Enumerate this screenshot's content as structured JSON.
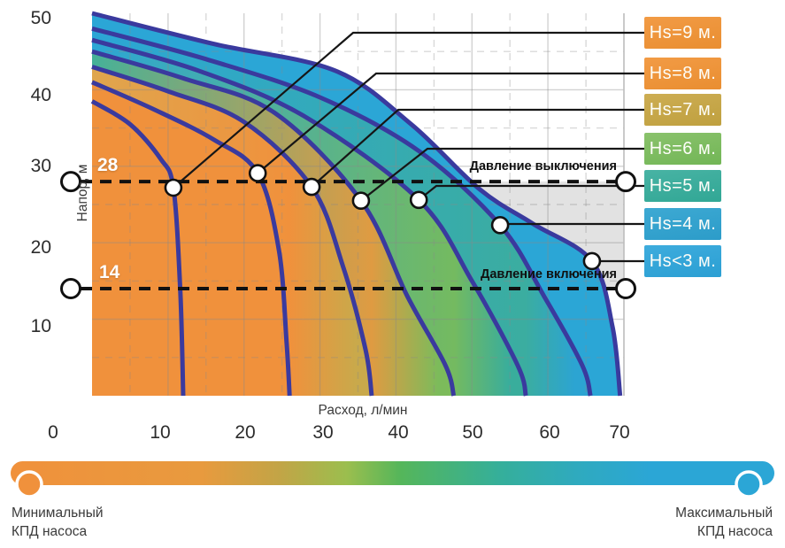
{
  "chart_data": {
    "type": "line",
    "title": "",
    "x_axis": {
      "label": "Расход, л/мин",
      "ticks": [
        "0",
        "10",
        "20",
        "30",
        "40",
        "50",
        "60",
        "70"
      ],
      "range": [
        0,
        70
      ],
      "grid": true
    },
    "y_axis": {
      "label": "Напор, м",
      "ticks": [
        "50",
        "40",
        "30",
        "20",
        "10"
      ],
      "range": [
        0,
        50
      ],
      "grid": true
    },
    "legend_position": "right",
    "pressure_lines": [
      {
        "value": "28",
        "h": 28,
        "label": "Давление выключения"
      },
      {
        "value": "14",
        "h": 14,
        "label": "Давление включения"
      }
    ],
    "series": [
      {
        "label": "Hs=9 м.",
        "color": "#EE9338",
        "color_top": "#F29B45",
        "color_base": "#E98E31",
        "marker": {
          "q": 10.7,
          "h": 27.2
        },
        "points": [
          [
            0,
            38.5
          ],
          [
            5,
            35.5
          ],
          [
            9,
            31
          ],
          [
            10.7,
            27.2
          ],
          [
            11.6,
            14
          ],
          [
            12.0,
            0
          ]
        ]
      },
      {
        "label": "Hs=8 м.",
        "color": "#EE9338",
        "color_top": "#F29B45",
        "color_base": "#E98E31",
        "marker": {
          "q": 21.8,
          "h": 29.1
        },
        "points": [
          [
            0,
            41
          ],
          [
            8,
            37.5
          ],
          [
            16,
            33.5
          ],
          [
            21.8,
            29.1
          ],
          [
            24.6,
            19
          ],
          [
            25.6,
            7
          ],
          [
            26.0,
            0
          ]
        ]
      },
      {
        "label": "Hs=7 м.",
        "color": "#C5A646",
        "color_top": "#CDAD53",
        "color_base": "#BFA03F",
        "marker": {
          "q": 28.9,
          "h": 27.3
        },
        "points": [
          [
            0,
            43
          ],
          [
            10,
            39.8
          ],
          [
            20,
            35.8
          ],
          [
            28.9,
            27.3
          ],
          [
            33,
            17
          ],
          [
            36,
            6
          ],
          [
            36.8,
            0
          ]
        ]
      },
      {
        "label": "Hs=6 м.",
        "color": "#7CBB5B",
        "color_top": "#8AC26C",
        "color_base": "#72B656",
        "marker": {
          "q": 35.4,
          "h": 25.5
        },
        "points": [
          [
            0,
            45
          ],
          [
            12,
            41.5
          ],
          [
            24,
            37
          ],
          [
            35.4,
            25.5
          ],
          [
            41.5,
            13
          ],
          [
            46.5,
            4
          ],
          [
            47.6,
            0
          ]
        ]
      },
      {
        "label": "Hs=5 м.",
        "color": "#3AAC9C",
        "color_top": "#48B3A4",
        "color_base": "#31A795",
        "marker": {
          "q": 43.0,
          "h": 25.6
        },
        "points": [
          [
            0,
            46.5
          ],
          [
            14,
            42.5
          ],
          [
            28,
            36.5
          ],
          [
            43,
            25.6
          ],
          [
            50,
            15
          ],
          [
            56,
            4
          ],
          [
            57.1,
            0
          ]
        ]
      },
      {
        "label": "Hs=4 м.",
        "color": "#2FA2CE",
        "color_top": "#3DA9D3",
        "color_base": "#2C9CC9",
        "marker": {
          "q": 53.7,
          "h": 22.3
        },
        "points": [
          [
            0,
            48
          ],
          [
            15,
            44
          ],
          [
            30,
            39
          ],
          [
            43,
            32
          ],
          [
            53.7,
            22.3
          ],
          [
            59.5,
            13
          ],
          [
            64.5,
            4
          ],
          [
            65.6,
            0
          ]
        ]
      },
      {
        "label": "Hs<3 м.",
        "color": "#2EA6D8",
        "color_top": "#3EACDD",
        "color_base": "#2B9FD3",
        "marker": {
          "q": 65.8,
          "h": 17.6
        },
        "points": [
          [
            0,
            50
          ],
          [
            16,
            46
          ],
          [
            32,
            42.5
          ],
          [
            42,
            35.5
          ],
          [
            51,
            27
          ],
          [
            58,
            22.5
          ],
          [
            65.8,
            17.6
          ],
          [
            68.5,
            9
          ],
          [
            69.5,
            0
          ]
        ]
      }
    ],
    "colors": {
      "curve_stroke": "#3A3A9E",
      "shaded_band": "#E2E2E2",
      "grid": "#8A8A8A",
      "orange": "#F0913C",
      "olive": "#C9A94B",
      "green": "#7CBB5B",
      "teal": "#39AD9C",
      "blue": "#2BA6D6"
    }
  },
  "efficiency_bar": {
    "left_label_lines": [
      "Минимальный",
      "КПД насоса"
    ],
    "right_label_lines": [
      "Максимальный",
      "КПД насоса"
    ],
    "left_color": "#F0913C",
    "right_color": "#2BA6D6",
    "gradient": [
      "#F0913C",
      "#E89A3E",
      "#C3A446",
      "#9BBE4E",
      "#55B65A",
      "#35AF9A",
      "#2FAABE",
      "#2BA6D6"
    ]
  }
}
